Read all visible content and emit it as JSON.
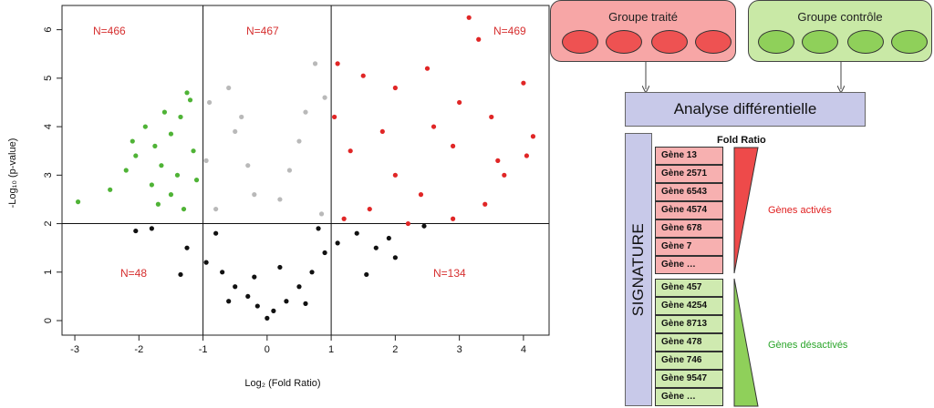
{
  "volcano": {
    "xlabel": "Log₂ (Fold Ratio)",
    "ylabel": "-Log₁₀ (p-value)",
    "quadrants": {
      "top_left": "N=466",
      "top_middle": "N=467",
      "top_right": "N=469",
      "bottom_left": "N=48",
      "bottom_right": "N=134"
    }
  },
  "chart_data": {
    "type": "scatter",
    "xlabel": "Log₂ (Fold Ratio)",
    "ylabel": "-Log₁₀ (p-value)",
    "xlim": [
      -3.2,
      4.4
    ],
    "ylim": [
      -0.3,
      6.5
    ],
    "xticks": [
      -3,
      -2,
      -1,
      0,
      1,
      2,
      3,
      4
    ],
    "yticks": [
      0,
      1,
      2,
      3,
      4,
      5,
      6
    ],
    "thresholds": {
      "x": [
        -1,
        1
      ],
      "y": 2
    },
    "grid": false,
    "series": [
      {
        "color": "#4fb336",
        "points": [
          [
            -2.95,
            2.45
          ],
          [
            -2.45,
            2.7
          ],
          [
            -2.2,
            3.1
          ],
          [
            -2.1,
            3.7
          ],
          [
            -1.9,
            4.0
          ],
          [
            -1.75,
            3.6
          ],
          [
            -1.65,
            3.2
          ],
          [
            -1.5,
            3.85
          ],
          [
            -1.35,
            4.2
          ],
          [
            -1.25,
            4.7
          ],
          [
            -1.2,
            4.55
          ],
          [
            -1.5,
            2.6
          ],
          [
            -1.8,
            2.8
          ],
          [
            -1.3,
            2.3
          ],
          [
            -1.1,
            2.9
          ],
          [
            -1.6,
            4.3
          ],
          [
            -2.05,
            3.4
          ],
          [
            -1.4,
            3.0
          ],
          [
            -1.15,
            3.5
          ],
          [
            -1.7,
            2.4
          ]
        ]
      },
      {
        "color": "#b9b9b9",
        "points": [
          [
            -0.9,
            4.5
          ],
          [
            -0.6,
            4.8
          ],
          [
            -0.4,
            4.2
          ],
          [
            -0.3,
            3.2
          ],
          [
            -0.2,
            2.6
          ],
          [
            0.2,
            2.5
          ],
          [
            0.35,
            3.1
          ],
          [
            0.6,
            4.3
          ],
          [
            0.75,
            5.3
          ],
          [
            0.9,
            4.6
          ],
          [
            -0.8,
            2.3
          ],
          [
            0.85,
            2.2
          ],
          [
            0.5,
            3.7
          ],
          [
            -0.5,
            3.9
          ],
          [
            -0.95,
            3.3
          ]
        ]
      },
      {
        "color": "#e02626",
        "points": [
          [
            1.1,
            5.3
          ],
          [
            1.5,
            5.05
          ],
          [
            2.0,
            4.8
          ],
          [
            2.5,
            5.2
          ],
          [
            3.15,
            6.25
          ],
          [
            3.3,
            5.8
          ],
          [
            3.5,
            4.2
          ],
          [
            4.0,
            4.9
          ],
          [
            4.15,
            3.8
          ],
          [
            4.05,
            3.4
          ],
          [
            3.7,
            3.0
          ],
          [
            3.4,
            2.4
          ],
          [
            2.9,
            2.1
          ],
          [
            2.4,
            2.6
          ],
          [
            2.0,
            3.0
          ],
          [
            1.6,
            2.3
          ],
          [
            1.2,
            2.1
          ],
          [
            1.3,
            3.5
          ],
          [
            1.8,
            3.9
          ],
          [
            2.6,
            4.0
          ],
          [
            2.9,
            3.6
          ],
          [
            3.0,
            4.5
          ],
          [
            2.2,
            2.0
          ],
          [
            1.05,
            4.2
          ],
          [
            3.6,
            3.3
          ]
        ]
      },
      {
        "color": "#111111",
        "points": [
          [
            -2.05,
            1.85
          ],
          [
            -1.8,
            1.9
          ],
          [
            -1.35,
            0.95
          ],
          [
            -1.25,
            1.5
          ],
          [
            -0.95,
            1.2
          ],
          [
            -0.7,
            1.0
          ],
          [
            -0.5,
            0.7
          ],
          [
            -0.3,
            0.5
          ],
          [
            -0.15,
            0.3
          ],
          [
            0.0,
            0.05
          ],
          [
            0.1,
            0.2
          ],
          [
            0.3,
            0.4
          ],
          [
            0.5,
            0.7
          ],
          [
            0.7,
            1.0
          ],
          [
            0.9,
            1.4
          ],
          [
            1.1,
            1.6
          ],
          [
            1.4,
            1.8
          ],
          [
            1.7,
            1.5
          ],
          [
            2.0,
            1.3
          ],
          [
            2.45,
            1.95
          ],
          [
            -0.8,
            1.8
          ],
          [
            0.8,
            1.9
          ],
          [
            1.55,
            0.95
          ],
          [
            -0.6,
            0.4
          ],
          [
            0.6,
            0.35
          ],
          [
            -0.2,
            0.9
          ],
          [
            0.2,
            1.1
          ],
          [
            1.9,
            1.7
          ]
        ]
      }
    ]
  },
  "diagram": {
    "treated": {
      "title": "Groupe traité",
      "oval_color": "#ee5252"
    },
    "control": {
      "title": "Groupe contrôle",
      "oval_color": "#8fd05a"
    },
    "analysis": "Analyse différentielle",
    "signature": "SIGNATURE",
    "fold_header": "Fold Ratio",
    "genes_up": [
      "Gène 13",
      "Gène 2571",
      "Gène 6543",
      "Gène 4574",
      "Gène 678",
      "Gène 7",
      "Gène …"
    ],
    "genes_down": [
      "Gène 457",
      "Gène 4254",
      "Gène 8713",
      "Gène 478",
      "Gène 746",
      "Gène 9547",
      "Gène …"
    ],
    "label_up": "Gènes activés",
    "label_down": "Gènes désactivés"
  }
}
